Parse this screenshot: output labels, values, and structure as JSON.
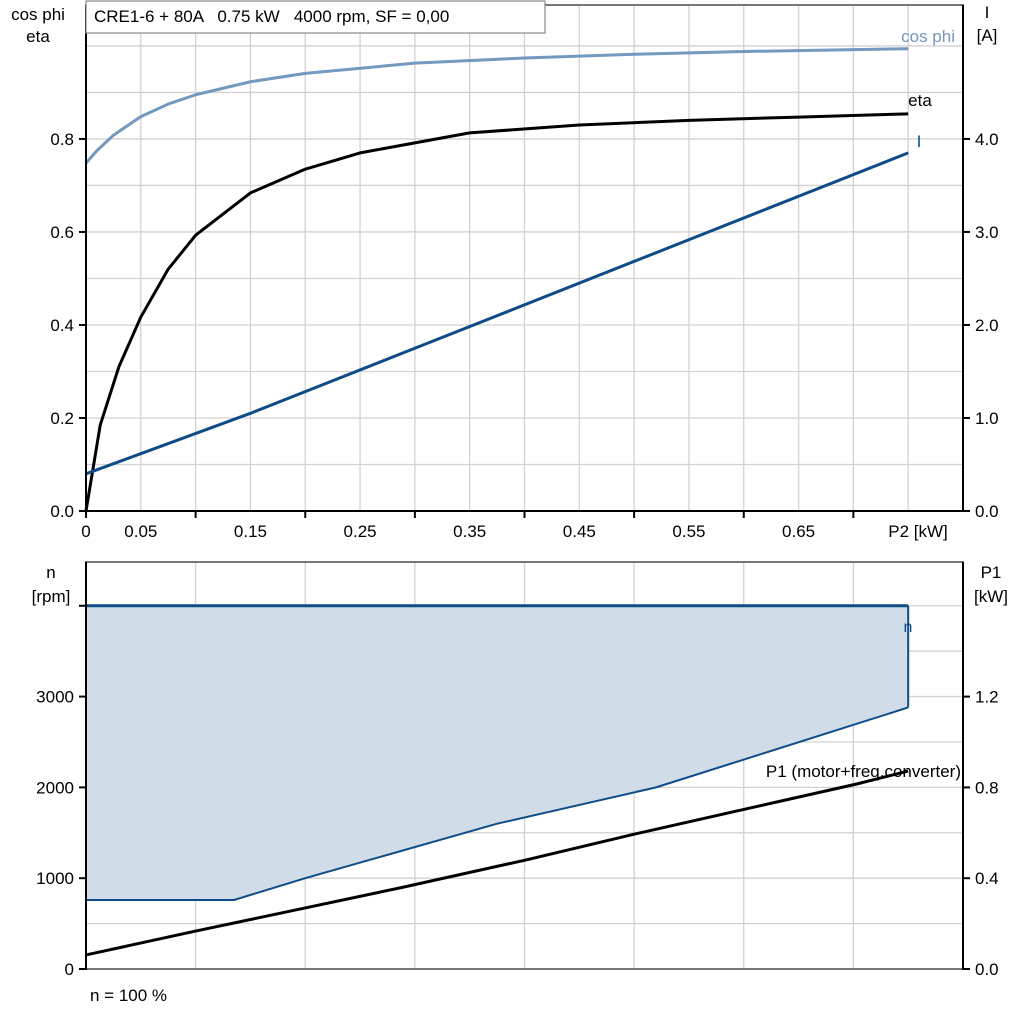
{
  "header": {
    "title": "CRE1-6 + 80A   0.75 kW   4000 rpm, SF = 0,00"
  },
  "footer": {
    "note": "n = 100 %"
  },
  "colors": {
    "cos_phi": "#7399bf",
    "eta": "#000000",
    "I": "#0f4c87",
    "n_fill": "#d0dce8",
    "n_line": "#0f4c87",
    "P1": "#000000"
  },
  "chart_data": [
    {
      "type": "line",
      "xlabel": "P2 [kW]",
      "xlim": [
        0,
        0.8
      ],
      "x_tick_labels": [
        "0",
        "0.05",
        "0.15",
        "0.25",
        "0.35",
        "0.45",
        "0.55",
        "0.65"
      ],
      "x_tick_values": [
        0,
        0.05,
        0.15,
        0.25,
        0.35,
        0.45,
        0.55,
        0.65
      ],
      "ylabel_left": [
        "cos phi",
        "eta"
      ],
      "ylim_left": [
        0,
        1.088
      ],
      "y_ticks_left": [
        "0.0",
        "0.2",
        "0.4",
        "0.6",
        "0.8"
      ],
      "ylabel_right": [
        "I",
        "[A]"
      ],
      "ylim_right": [
        0,
        5.44
      ],
      "y_ticks_right": [
        "0.0",
        "1.0",
        "2.0",
        "3.0",
        "4.0"
      ],
      "grid": true,
      "series": [
        {
          "name": "cos phi",
          "axis": "left",
          "x": [
            0,
            0.01,
            0.025,
            0.05,
            0.075,
            0.1,
            0.15,
            0.2,
            0.3,
            0.4,
            0.5,
            0.6,
            0.75
          ],
          "y": [
            0.748,
            0.775,
            0.808,
            0.848,
            0.875,
            0.895,
            0.923,
            0.941,
            0.963,
            0.974,
            0.982,
            0.988,
            0.994
          ]
        },
        {
          "name": "eta",
          "axis": "left",
          "x": [
            0,
            0.013,
            0.03,
            0.05,
            0.075,
            0.1,
            0.15,
            0.2,
            0.25,
            0.35,
            0.45,
            0.55,
            0.65,
            0.75
          ],
          "y": [
            0,
            0.185,
            0.31,
            0.417,
            0.52,
            0.593,
            0.684,
            0.735,
            0.77,
            0.813,
            0.83,
            0.84,
            0.847,
            0.854
          ]
        },
        {
          "name": "I",
          "axis": "right",
          "x": [
            0,
            0.15,
            0.75
          ],
          "y": [
            0.4,
            1.05,
            3.85
          ]
        }
      ]
    },
    {
      "type": "area",
      "xlim": [
        0,
        0.8
      ],
      "ylabel_left": [
        "n",
        "[rpm]"
      ],
      "ylim_left": [
        0,
        4482
      ],
      "y_ticks_left": [
        "0",
        "1000",
        "2000",
        "3000"
      ],
      "ylabel_right": [
        "P1",
        "[kW]"
      ],
      "ylim_right": [
        0,
        1.793
      ],
      "y_ticks_right": [
        "0.0",
        "0.4",
        "0.8",
        "1.2"
      ],
      "grid": true,
      "series": [
        {
          "name": "n",
          "axis": "left",
          "type": "area",
          "upper": {
            "x": [
              0,
              0.75
            ],
            "y": [
              4000,
              4000
            ]
          },
          "lower": {
            "x": [
              0,
              0.135,
              0.2,
              0.375,
              0.52,
              0.75
            ],
            "y": [
              760,
              760,
              1000,
              1600,
              2000,
              2880
            ]
          }
        },
        {
          "name": "P1 (motor+freq.converter)",
          "axis": "right",
          "type": "line",
          "x": [
            0,
            0.1,
            0.2,
            0.287,
            0.401,
            0.501,
            0.602,
            0.703,
            0.75
          ],
          "y": [
            0.062,
            0.167,
            0.269,
            0.358,
            0.48,
            0.595,
            0.705,
            0.815,
            0.872
          ]
        }
      ]
    }
  ]
}
